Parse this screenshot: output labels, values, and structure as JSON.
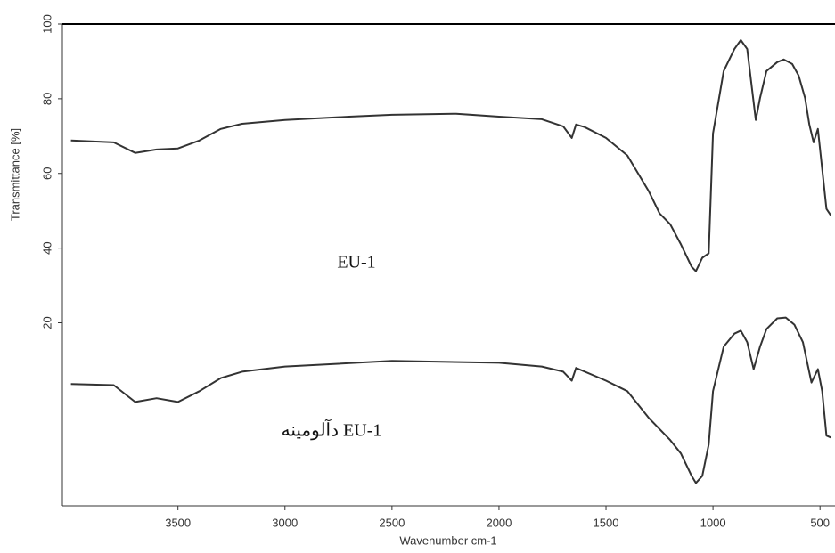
{
  "chart_data": {
    "type": "line",
    "xlabel": "Wavenumber cm-1",
    "ylabel": "Transmittance [%]",
    "xlim": [
      4040,
      430
    ],
    "ylim": [
      -29,
      100
    ],
    "xticks": [
      3500,
      3000,
      2500,
      2000,
      1500,
      1000,
      500
    ],
    "yticks": [
      20,
      40,
      60,
      80,
      100
    ],
    "annotations": [
      "EU-1",
      "دآلومینه EU-1"
    ],
    "series": [
      {
        "name": "EU-1",
        "color": "#333333",
        "x": [
          4000,
          3800,
          3700,
          3600,
          3500,
          3400,
          3300,
          3200,
          3000,
          2700,
          2500,
          2200,
          2000,
          1800,
          1700,
          1660,
          1640,
          1600,
          1500,
          1400,
          1300,
          1250,
          1200,
          1150,
          1100,
          1080,
          1050,
          1020,
          1000,
          950,
          900,
          870,
          840,
          800,
          780,
          750,
          700,
          670,
          630,
          600,
          570,
          550,
          530,
          510,
          490,
          470,
          450
        ],
        "values": [
          68.8,
          68.3,
          65.5,
          66.4,
          66.7,
          68.8,
          71.9,
          73.3,
          74.3,
          75.2,
          75.7,
          76,
          75.2,
          74.5,
          72.6,
          69.5,
          73.1,
          72.4,
          69.5,
          64.8,
          55.2,
          49.3,
          46.4,
          41,
          35,
          33.8,
          37.4,
          38.6,
          70.7,
          87.4,
          93.3,
          95.7,
          93.3,
          74.3,
          80.2,
          87.4,
          89.8,
          90.5,
          89.3,
          86.2,
          80.2,
          73.1,
          68.3,
          71.9,
          61.2,
          50.5,
          48.8
        ]
      },
      {
        "name": "دآلومینه EU-1",
        "color": "#333333",
        "x": [
          4000,
          3800,
          3700,
          3600,
          3500,
          3400,
          3300,
          3200,
          3000,
          2500,
          2000,
          1800,
          1700,
          1660,
          1640,
          1500,
          1400,
          1300,
          1200,
          1150,
          1100,
          1080,
          1050,
          1020,
          1000,
          950,
          900,
          870,
          840,
          810,
          780,
          750,
          700,
          660,
          620,
          580,
          540,
          510,
          490,
          470,
          450
        ],
        "values": [
          3.6,
          3.3,
          -1.2,
          -0.2,
          -1.2,
          1.7,
          5.2,
          6.9,
          8.3,
          9.8,
          9.3,
          8.3,
          6.9,
          4.5,
          7.9,
          4.5,
          1.7,
          -5.5,
          -11.4,
          -15,
          -21,
          -22.9,
          -21,
          -12.6,
          1.7,
          13.6,
          17.1,
          17.9,
          14.8,
          7.6,
          13.6,
          18.3,
          21.2,
          21.4,
          19.5,
          14.8,
          4,
          7.6,
          1.7,
          -10.2,
          -10.7
        ]
      }
    ]
  }
}
